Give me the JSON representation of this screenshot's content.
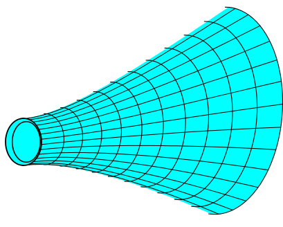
{
  "figure": {
    "kind": "3d-surface-wireframe",
    "shape": "flared tube / horn (surface of revolution)",
    "fill_color": "#00ffff",
    "wire_color": "#000000",
    "background_color": "#ffffff",
    "mesh": {
      "rings_visible": 12,
      "generators_visible": 14
    }
  }
}
